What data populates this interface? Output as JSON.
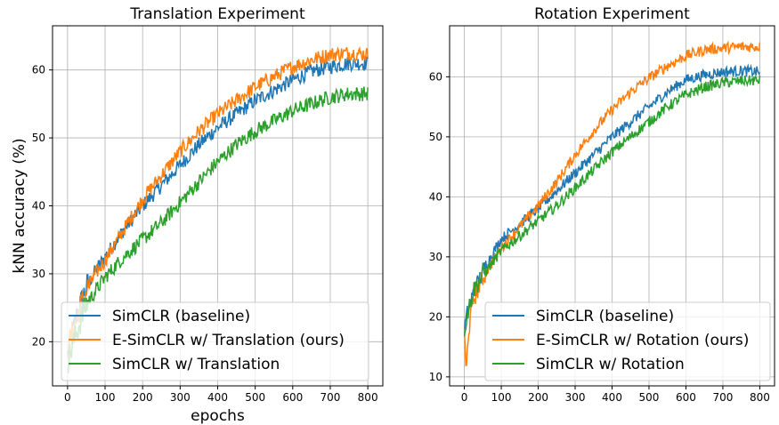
{
  "chart_data": [
    {
      "type": "line",
      "title": "Translation Experiment",
      "xlabel": "epochs",
      "ylabel": "kNN accuracy (%)",
      "xlim": [
        -40,
        840
      ],
      "ylim": [
        13.5,
        66.5
      ],
      "xticks": [
        0,
        100,
        200,
        300,
        400,
        500,
        600,
        700,
        800
      ],
      "yticks": [
        20,
        30,
        40,
        50,
        60
      ],
      "grid": true,
      "legend_position": "bottom-right",
      "legend": [
        "SimCLR (baseline)",
        "E-SimCLR w/ Translation (ours)",
        "SimCLR w/ Translation"
      ],
      "series": [
        {
          "name": "SimCLR (baseline)",
          "color": "#1f77b4",
          "x": [
            0,
            25,
            50,
            75,
            100,
            150,
            200,
            250,
            300,
            350,
            400,
            450,
            500,
            550,
            600,
            650,
            700,
            750,
            800
          ],
          "y": [
            18,
            24,
            28,
            30.5,
            32.5,
            36.5,
            40,
            43,
            46,
            49,
            51.5,
            53.5,
            55.5,
            57,
            58.5,
            59.8,
            60.5,
            61,
            61
          ]
        },
        {
          "name": "E-SimCLR w/ Translation (ours)",
          "color": "#ff7f0e",
          "x": [
            0,
            25,
            50,
            75,
            100,
            150,
            200,
            250,
            300,
            350,
            400,
            450,
            500,
            550,
            600,
            650,
            700,
            750,
            800
          ],
          "y": [
            19,
            23.5,
            27.5,
            30,
            32,
            36.5,
            41,
            44.5,
            48,
            51,
            53.5,
            55.5,
            57.5,
            59,
            60.5,
            61.5,
            62.3,
            62.5,
            62.3
          ]
        },
        {
          "name": "SimCLR w/ Translation",
          "color": "#2ca02c",
          "x": [
            0,
            25,
            50,
            75,
            100,
            150,
            200,
            250,
            300,
            350,
            400,
            450,
            500,
            550,
            600,
            650,
            700,
            750,
            800
          ],
          "y": [
            17,
            21.5,
            25.5,
            27.5,
            29.5,
            32.5,
            35,
            37.5,
            40.5,
            43.5,
            46.5,
            49,
            51,
            52.5,
            54,
            55,
            56,
            56.5,
            56.5
          ]
        }
      ]
    },
    {
      "type": "line",
      "title": "Rotation Experiment",
      "xlabel": "",
      "ylabel": "",
      "xlim": [
        -40,
        840
      ],
      "ylim": [
        8.5,
        68.5
      ],
      "xticks": [
        0,
        100,
        200,
        300,
        400,
        500,
        600,
        700,
        800
      ],
      "yticks": [
        10,
        20,
        30,
        40,
        50,
        60
      ],
      "grid": true,
      "legend_position": "bottom-right",
      "legend": [
        "SimCLR (baseline)",
        "E-SimCLR w/ Rotation (ours)",
        "SimCLR w/ Rotation"
      ],
      "series": [
        {
          "name": "SimCLR (baseline)",
          "color": "#1f77b4",
          "x": [
            0,
            10,
            25,
            50,
            75,
            100,
            150,
            200,
            250,
            300,
            350,
            400,
            450,
            500,
            550,
            600,
            650,
            700,
            750,
            800
          ],
          "y": [
            18,
            21,
            24,
            27.5,
            30.5,
            33,
            35.5,
            38,
            41,
            44,
            47,
            50,
            52.5,
            55,
            57.5,
            59.5,
            60.3,
            60.8,
            61,
            60.8
          ]
        },
        {
          "name": "E-SimCLR w/ Rotation (ours)",
          "color": "#ff7f0e",
          "x": [
            0,
            5,
            10,
            25,
            50,
            75,
            100,
            150,
            200,
            250,
            300,
            350,
            400,
            450,
            500,
            550,
            600,
            650,
            700,
            750,
            800
          ],
          "y": [
            17,
            10,
            17,
            23,
            26.5,
            29,
            31.5,
            35,
            38.5,
            42.5,
            47,
            51,
            54.5,
            57.5,
            59.8,
            61.8,
            63.5,
            64.5,
            64.8,
            65,
            65
          ]
        },
        {
          "name": "SimCLR w/ Rotation",
          "color": "#2ca02c",
          "x": [
            0,
            10,
            25,
            50,
            75,
            100,
            150,
            200,
            250,
            300,
            350,
            400,
            450,
            500,
            550,
            600,
            650,
            700,
            750,
            800
          ],
          "y": [
            18,
            21,
            24.5,
            27,
            29,
            31,
            33.5,
            36,
            38.5,
            41.5,
            44.5,
            47.5,
            50,
            52.5,
            55,
            57,
            58.3,
            59,
            59.3,
            59.4
          ]
        }
      ]
    }
  ]
}
